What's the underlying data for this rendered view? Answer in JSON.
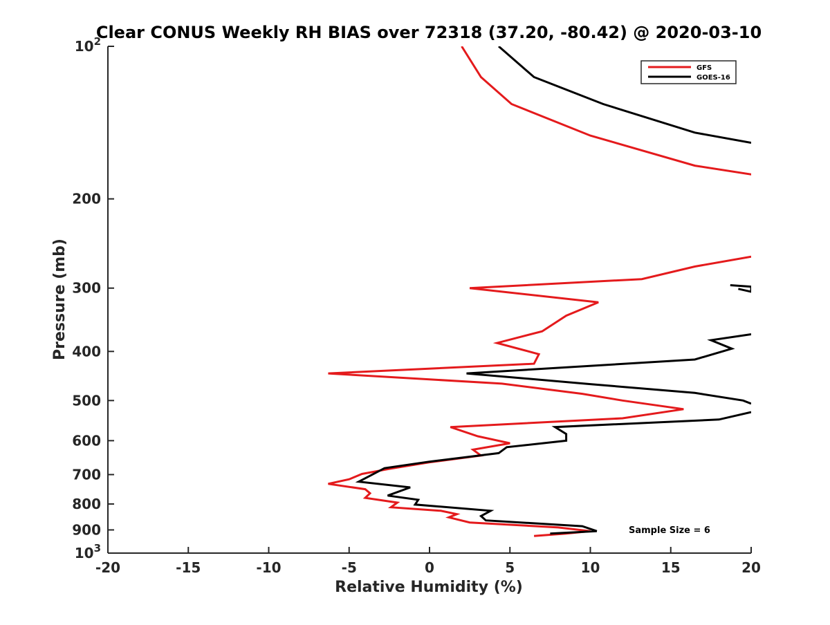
{
  "chart_data": {
    "type": "line",
    "title": "Clear CONUS Weekly RH BIAS over 72318 (37.20, -80.42) @ 2020-03-10",
    "xlabel": "Relative Humidity (%)",
    "ylabel": "Pressure (mb)",
    "xlim": [
      -20,
      20
    ],
    "ylim": [
      100,
      1000
    ],
    "yscale": "log",
    "y_reversed": true,
    "grid": false,
    "xticks": [
      -20,
      -15,
      -10,
      -5,
      0,
      5,
      10,
      15,
      20
    ],
    "xtick_labels": [
      "-20",
      "-15",
      "-10",
      "-5",
      "0",
      "5",
      "10",
      "15",
      "20"
    ],
    "yticks": [
      100,
      200,
      300,
      400,
      500,
      600,
      700,
      800,
      900,
      1000
    ],
    "ytick_labels": [
      {
        "base": "10",
        "exp": "2"
      },
      {
        "base": "200",
        "exp": ""
      },
      {
        "base": "300",
        "exp": ""
      },
      {
        "base": "400",
        "exp": ""
      },
      {
        "base": "500",
        "exp": ""
      },
      {
        "base": "600",
        "exp": ""
      },
      {
        "base": "700",
        "exp": ""
      },
      {
        "base": "800",
        "exp": ""
      },
      {
        "base": "900",
        "exp": ""
      },
      {
        "base": "10",
        "exp": "3"
      }
    ],
    "legend_position": "top-right",
    "annotation": "Sample Size = 6",
    "series": [
      {
        "name": "GFS",
        "color": "#e41a1c",
        "points": [
          [
            2.0,
            100
          ],
          [
            3.2,
            115
          ],
          [
            5.1,
            130
          ],
          [
            10.0,
            150
          ],
          [
            16.5,
            172
          ],
          [
            20.5,
            180
          ],
          null,
          [
            20.0,
            260
          ],
          [
            16.5,
            272
          ],
          [
            13.2,
            288
          ],
          [
            2.5,
            300
          ],
          [
            10.5,
            320
          ],
          [
            8.5,
            340
          ],
          [
            7.0,
            365
          ],
          [
            4.2,
            385
          ],
          [
            6.8,
            405
          ],
          [
            6.5,
            423
          ],
          [
            -6.3,
            442
          ],
          [
            4.5,
            463
          ],
          [
            9.5,
            485
          ],
          [
            12.0,
            500
          ],
          [
            15.8,
            520
          ],
          [
            12.0,
            542
          ],
          [
            1.3,
            564
          ],
          [
            3.0,
            588
          ],
          [
            5.0,
            607
          ],
          [
            2.7,
            625
          ],
          [
            3.2,
            642
          ],
          [
            0.0,
            662
          ],
          [
            -2.5,
            682
          ],
          [
            -4.2,
            698
          ],
          [
            -5.0,
            715
          ],
          [
            -6.3,
            730
          ],
          [
            -4.0,
            748
          ],
          [
            -3.7,
            762
          ],
          [
            -4.0,
            778
          ],
          [
            -2.0,
            795
          ],
          [
            -2.4,
            812
          ],
          [
            0.7,
            825
          ],
          [
            1.7,
            838
          ],
          [
            1.2,
            850
          ],
          [
            2.5,
            870
          ],
          [
            8.0,
            890
          ],
          [
            10.0,
            905
          ],
          [
            8.5,
            915
          ],
          [
            6.5,
            925
          ]
        ]
      },
      {
        "name": "GOES-16",
        "color": "#000000",
        "points": [
          [
            4.3,
            100
          ],
          [
            6.5,
            115
          ],
          [
            10.8,
            130
          ],
          [
            16.5,
            148
          ],
          [
            20.0,
            155
          ],
          null,
          [
            18.7,
            296
          ],
          [
            20.0,
            298
          ],
          [
            20.0,
            305
          ],
          [
            19.2,
            301
          ],
          null,
          [
            20.0,
            370
          ],
          [
            17.5,
            380
          ],
          [
            18.8,
            395
          ],
          [
            16.5,
            415
          ],
          [
            2.3,
            442
          ],
          [
            10.0,
            464
          ],
          [
            16.5,
            483
          ],
          [
            19.5,
            500
          ],
          [
            20.0,
            507
          ],
          null,
          [
            20.0,
            527
          ],
          [
            18.0,
            545
          ],
          [
            7.8,
            564
          ],
          [
            8.5,
            582
          ],
          [
            8.5,
            600
          ],
          [
            4.8,
            618
          ],
          [
            4.3,
            635
          ],
          [
            0.0,
            660
          ],
          [
            -2.8,
            680
          ],
          [
            -4.4,
            723
          ],
          [
            -1.2,
            742
          ],
          [
            -2.6,
            770
          ],
          [
            -0.7,
            785
          ],
          [
            -0.9,
            802
          ],
          [
            3.8,
            825
          ],
          [
            3.2,
            845
          ],
          [
            3.5,
            862
          ],
          [
            9.5,
            885
          ],
          [
            10.4,
            905
          ],
          [
            7.5,
            915
          ]
        ]
      }
    ]
  }
}
